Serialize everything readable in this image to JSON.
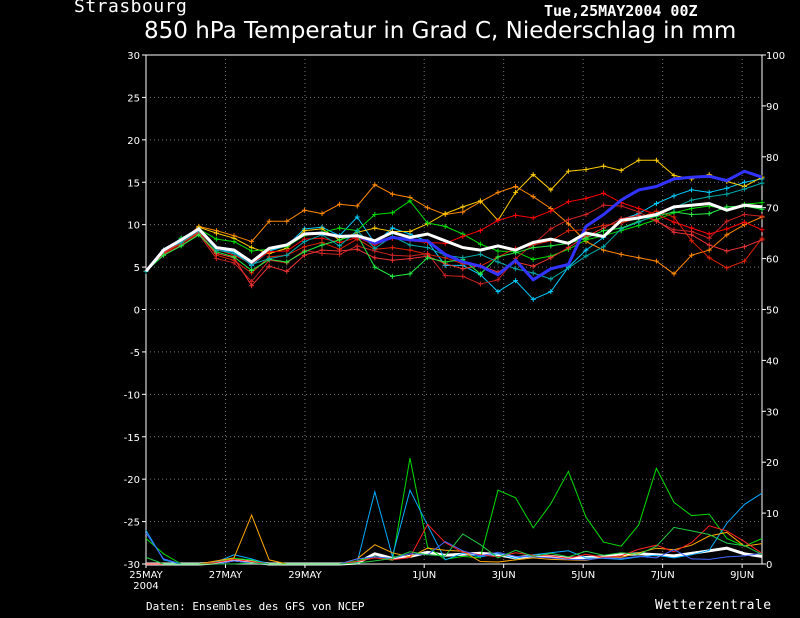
{
  "header": {
    "location": "Strasbourg",
    "datestamp": "Tue,25MAY2004 00Z",
    "title": "850 hPa Temperatur in Grad C, Niederschlag in mm"
  },
  "footer": {
    "credit": "Daten: Ensembles des GFS von NCEP",
    "brand": "Wetterzentrale"
  },
  "chart_data": {
    "type": "line",
    "title": "850 hPa Temperatur in Grad C, Niederschlag in mm",
    "x_tick_labels": [
      "25MAY",
      "27MAY",
      "29MAY",
      "1JUN",
      "3JUN",
      "5JUN",
      "7JUN",
      "9JUN"
    ],
    "x_tick_sublabel": "2004",
    "x_tick_days": [
      0,
      2,
      4,
      7,
      9,
      11,
      13,
      15
    ],
    "xlim": [
      0,
      15.5
    ],
    "ylim_left": [
      -30,
      30
    ],
    "ylim_right": [
      0,
      100
    ],
    "left_ticks": [
      30,
      25,
      20,
      15,
      10,
      5,
      0,
      -5,
      -10,
      -15,
      -20,
      -25,
      -30
    ],
    "right_ticks": [
      100,
      90,
      80,
      70,
      60,
      50,
      40,
      30,
      20,
      10,
      0
    ],
    "grid": true,
    "temperature_series": [
      {
        "color": "#ffffff",
        "width": 3,
        "values": [
          4.5,
          7,
          8.2,
          9.5,
          7.3,
          7,
          5.6,
          7.2,
          7.6,
          8.9,
          9,
          8.6,
          8.7,
          8.1,
          9.1,
          8.5,
          8.9,
          8.1,
          7.3,
          7,
          7.5,
          7,
          7.9,
          8.3,
          7.8,
          9,
          8.6,
          10.5,
          10.8,
          11.2,
          12.1,
          12.3,
          12.5,
          11.7,
          12.3,
          12.1
        ]
      },
      {
        "color": "#3333ff",
        "width": 3,
        "values": [
          4.5,
          7,
          8.2,
          9.5,
          7.3,
          7,
          5.6,
          7.2,
          7.6,
          8.9,
          9,
          8.6,
          8.7,
          7.8,
          8.5,
          8.2,
          8.1,
          6.5,
          5.6,
          5.1,
          4.1,
          5.8,
          3.5,
          4.8,
          5.3,
          9.8,
          11.2,
          12.9,
          14.1,
          14.5,
          15.4,
          15.6,
          15.7,
          15.2,
          16.3,
          15.6
        ]
      },
      {
        "color": "#00ccff",
        "width": 1,
        "values": [
          4.5,
          7,
          8.4,
          9.3,
          7,
          6.8,
          5.2,
          6.9,
          7.5,
          9.5,
          9.7,
          8.7,
          10.9,
          7.8,
          9.6,
          8.9,
          8,
          5.2,
          5.2,
          4.1,
          2.1,
          3.4,
          1.2,
          2.1,
          5,
          7,
          8.5,
          10.6,
          11.3,
          12.5,
          13.4,
          14.1,
          13.8,
          14.3,
          15,
          15.4
        ]
      },
      {
        "color": "#ff8800",
        "width": 1,
        "values": [
          4.5,
          7,
          8,
          9.8,
          9.3,
          8.7,
          8,
          10.4,
          10.4,
          11.7,
          11.3,
          12.4,
          12.2,
          14.7,
          13.6,
          13.2,
          12,
          11.2,
          11.5,
          12.7,
          13.8,
          14.5,
          13.3,
          11.9,
          10.1,
          8,
          7,
          6.5,
          6.1,
          5.7,
          4.2,
          6.4,
          7,
          8.8,
          10,
          10.9
        ]
      },
      {
        "color": "#ffcc00",
        "width": 1,
        "values": [
          4.5,
          7,
          8,
          9.7,
          9,
          8.4,
          7.3,
          6.6,
          7.2,
          9.3,
          9.5,
          8.2,
          9.1,
          9.6,
          9.2,
          9.2,
          10.1,
          11.3,
          12.1,
          12.8,
          10.5,
          13.8,
          15.9,
          14.1,
          16.3,
          16.5,
          16.9,
          16.4,
          17.6,
          17.6,
          15.8,
          15.4,
          15.9,
          15.1,
          14.5,
          15.6
        ]
      },
      {
        "color": "#00dd00",
        "width": 1,
        "values": [
          4.5,
          6.8,
          8.4,
          9.5,
          8.3,
          8,
          6.9,
          7.1,
          7.4,
          8.7,
          9.1,
          9.6,
          9.3,
          11.2,
          11.4,
          12.8,
          10.2,
          9.8,
          8.9,
          7.7,
          6.9,
          6.8,
          5.9,
          6.3,
          7.1,
          8.2,
          8.7,
          9.3,
          9.9,
          10.6,
          11.4,
          11.9,
          12.2,
          11.8,
          12.4,
          12.6
        ]
      },
      {
        "color": "#ff0000",
        "width": 1,
        "values": [
          4.5,
          6.9,
          8.1,
          9.2,
          7.1,
          6.4,
          5.4,
          6.8,
          6.9,
          8.3,
          8.4,
          7.9,
          8.5,
          7.6,
          8.4,
          8.1,
          7.9,
          7.8,
          8.6,
          9.3,
          10.5,
          11.1,
          10.8,
          11.6,
          12.7,
          13.1,
          13.7,
          12.6,
          11.9,
          11.2,
          10.3,
          9.6,
          8.9,
          9.5,
          10.3,
          9.4
        ]
      },
      {
        "color": "#dd2200",
        "width": 1,
        "values": [
          4.5,
          6.6,
          7.8,
          9,
          6.4,
          5.8,
          4.3,
          6.2,
          6.4,
          7.4,
          7.9,
          7.1,
          8.3,
          7.1,
          7.3,
          7,
          6.5,
          6.1,
          5.4,
          5.1,
          6.2,
          7.2,
          7.6,
          8.1,
          9.3,
          9.4,
          9.9,
          10.2,
          10.8,
          11.6,
          10.9,
          8.1,
          6.1,
          4.9,
          5.7,
          8.4
        ]
      },
      {
        "color": "#cc2222",
        "width": 1,
        "values": [
          4.5,
          6.5,
          7.6,
          8.9,
          6,
          5.5,
          3.3,
          5.8,
          5.5,
          7,
          6.6,
          6.5,
          7.5,
          6.9,
          6.4,
          6.3,
          6.6,
          4,
          3.9,
          3,
          3.5,
          6,
          7.7,
          9.5,
          10.6,
          11.2,
          12.3,
          12.2,
          11.5,
          10.4,
          9.4,
          9.2,
          8.4,
          10.4,
          11.2,
          11
        ]
      },
      {
        "color": "#ee3333",
        "width": 1,
        "values": [
          4.5,
          6.7,
          7.9,
          9.1,
          6.6,
          6.1,
          2.8,
          5.1,
          4.5,
          6.4,
          7,
          6.9,
          7.1,
          6.1,
          5.8,
          6,
          6.3,
          5.4,
          4.8,
          5.2,
          4.4,
          5.6,
          5.1,
          6.1,
          7.3,
          8.6,
          9.6,
          10.7,
          11.1,
          10.5,
          9.1,
          8.8,
          7.6,
          6.9,
          7.4,
          8.2
        ]
      },
      {
        "color": "#22ee44",
        "width": 1,
        "values": [
          4.5,
          6.4,
          7.5,
          8.8,
          6.8,
          6.2,
          4.6,
          5.9,
          5.6,
          6.8,
          7.6,
          8.2,
          8.8,
          5,
          3.9,
          4.2,
          6.1,
          5.6,
          5.9,
          4.2,
          6.2,
          6.7,
          7.3,
          7.5,
          7.8,
          8.4,
          9.3,
          9.6,
          10.4,
          11,
          11.5,
          11.2,
          11.3,
          12.1,
          12.2,
          11.8
        ]
      },
      {
        "color": "#00aaaa",
        "width": 1,
        "values": [
          4.5,
          7,
          7.9,
          9.3,
          7,
          6.6,
          5.3,
          6,
          6.4,
          8,
          8.8,
          7.5,
          9.3,
          7.2,
          8.6,
          7.6,
          7.3,
          6.4,
          6.1,
          6.5,
          5.6,
          4.8,
          4.3,
          3.6,
          4.9,
          6.3,
          7.4,
          9.5,
          10.3,
          11.2,
          12,
          12.9,
          13.3,
          13.6,
          14.2,
          14.9
        ]
      }
    ],
    "precip_series": [
      {
        "color": "#ffffff",
        "width": 3,
        "values": [
          0,
          0,
          0,
          0,
          0.2,
          0.8,
          0.4,
          0,
          0,
          0,
          0,
          0,
          0.2,
          2,
          1.1,
          1.5,
          2.3,
          1.7,
          1.9,
          2.1,
          1.8,
          1.2,
          1.6,
          1.5,
          1.1,
          1.3,
          1.4,
          1.8,
          2,
          1.8,
          1.6,
          2.1,
          2.6,
          3.1,
          2,
          1.5
        ]
      },
      {
        "color": "#00dd00",
        "width": 1,
        "values": [
          5,
          2,
          0,
          0,
          0.5,
          1.1,
          0.8,
          0,
          0,
          0,
          0,
          0,
          0.6,
          1.5,
          0.7,
          20.8,
          3.3,
          0.9,
          1.5,
          1.2,
          14.5,
          13,
          7.1,
          11.8,
          18.2,
          9.2,
          4.3,
          3.5,
          7.7,
          18.8,
          12.1,
          9.5,
          9.8,
          5,
          3.5,
          5
        ]
      },
      {
        "color": "#00aaff",
        "width": 1,
        "values": [
          6.6,
          0.8,
          0,
          0,
          0.4,
          1.8,
          1,
          0,
          0,
          0,
          0,
          0,
          0.3,
          14.2,
          1.5,
          14.5,
          7.6,
          0.8,
          2.1,
          1.4,
          2,
          1.1,
          1.8,
          2.2,
          2.6,
          1.2,
          1.1,
          0.9,
          1.4,
          1.7,
          1.2,
          1.8,
          2.7,
          8,
          11.7,
          13.9
        ]
      },
      {
        "color": "#ffaa00",
        "width": 1,
        "values": [
          0,
          0,
          0,
          0,
          0.6,
          1.2,
          9.6,
          0.8,
          0,
          0,
          0,
          0,
          1,
          3.8,
          2.2,
          1.4,
          3.1,
          2.7,
          2.5,
          0.5,
          0.4,
          0.8,
          1.2,
          0.9,
          0.8,
          0.7,
          1.4,
          1.3,
          2.2,
          3.1,
          2.8,
          3.7,
          5.5,
          6.2,
          3.5,
          4
        ]
      },
      {
        "color": "#ff2222",
        "width": 1,
        "values": [
          0,
          0,
          0,
          0,
          0.3,
          0.9,
          0.5,
          0,
          0,
          0,
          0,
          0,
          0.5,
          1.2,
          0.8,
          1.3,
          7.8,
          4.2,
          2.3,
          1.8,
          1.4,
          2.2,
          1.7,
          1.6,
          1.1,
          1.9,
          1.3,
          1.6,
          2.9,
          3.7,
          2.4,
          4.2,
          7.5,
          6.5,
          4.4,
          2.1
        ]
      },
      {
        "color": "#4466ff",
        "width": 1,
        "values": [
          6.1,
          1,
          0,
          0,
          0,
          0.6,
          0.2,
          0,
          0,
          0,
          0,
          0,
          1,
          1.4,
          1.1,
          2,
          1.8,
          4.4,
          2.6,
          1.6,
          2.3,
          1.5,
          1.4,
          1.2,
          0.9,
          0.8,
          1.2,
          1.1,
          1.5,
          1.2,
          2.8,
          1,
          0.9,
          1.4,
          1.6,
          2.1
        ]
      },
      {
        "color": "#22cc44",
        "width": 1,
        "values": [
          1.3,
          0,
          0,
          0,
          0,
          0,
          0.2,
          0,
          0,
          0,
          0,
          0,
          0.2,
          0.6,
          1.1,
          2.4,
          1.8,
          1.6,
          5.9,
          3.8,
          1.2,
          2.7,
          1.5,
          2.1,
          1.4,
          2.5,
          1.7,
          2.2,
          1.9,
          3.5,
          7.2,
          6.5,
          5.8,
          4.1,
          3.6,
          1.9
        ]
      }
    ]
  }
}
